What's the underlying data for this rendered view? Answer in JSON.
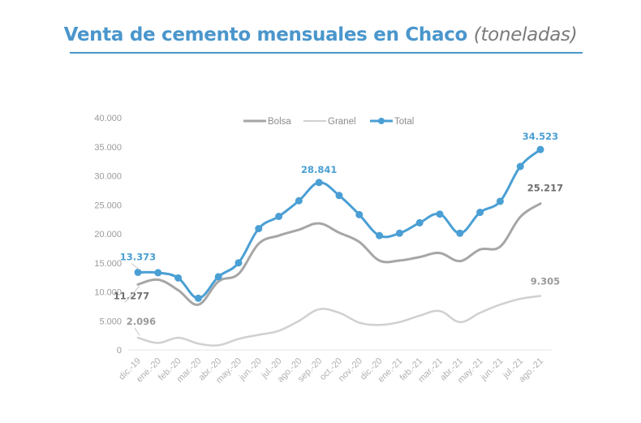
{
  "chart_data": {
    "type": "line",
    "title": "Venta de cemento mensuales en Chaco",
    "title_unit": "(toneladas)",
    "xlabel": "",
    "ylabel": "",
    "ylim": [
      0,
      40000
    ],
    "y_ticks": [
      "0",
      "5.000",
      "10.000",
      "15.000",
      "20.000",
      "25.000",
      "30.000",
      "35.000",
      "40.000"
    ],
    "y_tick_values": [
      0,
      5000,
      10000,
      15000,
      20000,
      25000,
      30000,
      35000,
      40000
    ],
    "grid": false,
    "legend_position": "top-center",
    "categories": [
      "dic.-19",
      "ene.-20",
      "feb.-20",
      "mar.-20",
      "abr.-20",
      "may.-20",
      "jun.-20",
      "jul.-20",
      "ago.-20",
      "sep.-20",
      "oct.-20",
      "nov.-20",
      "dic.-20",
      "ene.-21",
      "feb.-21",
      "mar.-21",
      "abr.-21",
      "may.-21",
      "jun.-21",
      "jul.-21",
      "ago.-21"
    ],
    "series": [
      {
        "name": "Bolsa",
        "color": "#a6a6a6",
        "markers": false,
        "values": [
          11277,
          12100,
          10300,
          7800,
          11800,
          13100,
          18300,
          19700,
          20700,
          21800,
          20200,
          18600,
          15400,
          15400,
          16000,
          16700,
          15300,
          17300,
          17800,
          22900,
          25217
        ],
        "labels": [
          {
            "index": 0,
            "text": "11.277"
          },
          {
            "index": 20,
            "text": "25.217"
          }
        ]
      },
      {
        "name": "Granel",
        "color": "#d0d0d0",
        "markers": false,
        "values": [
          2096,
          1200,
          2100,
          1100,
          800,
          1900,
          2600,
          3300,
          5000,
          7000,
          6400,
          4700,
          4300,
          4800,
          5900,
          6700,
          4800,
          6400,
          7800,
          8800,
          9305
        ],
        "labels": [
          {
            "index": 0,
            "text": "2.096"
          },
          {
            "index": 20,
            "text": "9.305"
          }
        ]
      },
      {
        "name": "Total",
        "color": "#4a9fd4",
        "markers": true,
        "values": [
          13373,
          13300,
          12400,
          8900,
          12600,
          15000,
          20900,
          23000,
          25700,
          28841,
          26600,
          23300,
          19700,
          20100,
          21900,
          23400,
          20100,
          23700,
          25600,
          31600,
          34523
        ],
        "labels": [
          {
            "index": 0,
            "text": "13.373"
          },
          {
            "index": 9,
            "text": "28.841"
          },
          {
            "index": 20,
            "text": "34.523"
          }
        ]
      }
    ]
  }
}
